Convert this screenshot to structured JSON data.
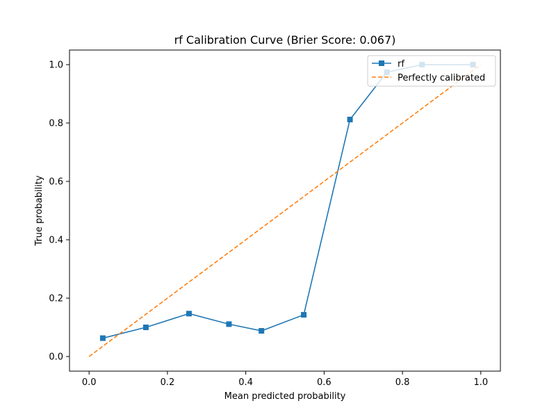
{
  "chart_data": {
    "type": "line",
    "title": "rf Calibration Curve (Brier Score: 0.067)",
    "xlabel": "Mean predicted probability",
    "ylabel": "True probability",
    "xlim": [
      -0.05,
      1.05
    ],
    "ylim": [
      -0.05,
      1.05
    ],
    "x_ticks": [
      0.0,
      0.2,
      0.4,
      0.6,
      0.8,
      1.0
    ],
    "y_ticks": [
      0.0,
      0.2,
      0.4,
      0.6,
      0.8,
      1.0
    ],
    "x_tick_labels": [
      "0.0",
      "0.2",
      "0.4",
      "0.6",
      "0.8",
      "1.0"
    ],
    "y_tick_labels": [
      "0.0",
      "0.2",
      "0.4",
      "0.6",
      "0.8",
      "1.0"
    ],
    "grid": false,
    "legend_position": "top-right",
    "series": [
      {
        "name": "rf",
        "style": "solid-line-square-markers",
        "color": "#1f77b4",
        "x": [
          0.035,
          0.145,
          0.255,
          0.357,
          0.44,
          0.548,
          0.666,
          0.76,
          0.85,
          0.98
        ],
        "y": [
          0.063,
          0.1,
          0.147,
          0.111,
          0.088,
          0.143,
          0.812,
          0.974,
          1.0,
          1.0
        ]
      },
      {
        "name": "Perfectly calibrated",
        "style": "dashed-line",
        "color": "#ff7f0e",
        "x": [
          0.0,
          1.0
        ],
        "y": [
          0.0,
          1.0
        ]
      }
    ]
  }
}
